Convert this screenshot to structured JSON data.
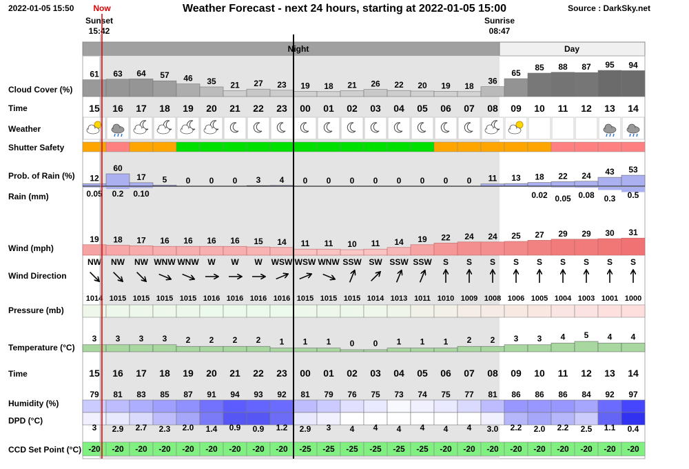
{
  "header": {
    "timestamp": "2022-01-05 15:50",
    "now": "Now",
    "title": "Weather Forecast - next 24 hours, starting at 2022-01-05 15:00",
    "source": "Source : DarkSky.net",
    "sunset_label": "Sunset",
    "sunset_time": "15:42",
    "sunrise_label": "Sunrise",
    "sunrise_time": "08:47",
    "night": "Night",
    "day": "Day"
  },
  "labels": {
    "cloud_cover": "Cloud Cover (%)",
    "time": "Time",
    "weather": "Weather",
    "shutter": "Shutter Safety",
    "rain_prob": "Prob. of Rain (%)",
    "rain_mm": "Rain (mm)",
    "wind": "Wind (mph)",
    "wind_dir": "Wind Direction",
    "pressure": "Pressure (mb)",
    "temperature": "Temperature (°C)",
    "humidity": "Humidity (%)",
    "dpd": "DPD (°C)",
    "ccd": "CCD Set Point (°C)"
  },
  "hours": [
    "15",
    "16",
    "17",
    "18",
    "19",
    "20",
    "21",
    "22",
    "23",
    "00",
    "01",
    "02",
    "03",
    "04",
    "05",
    "06",
    "07",
    "08",
    "09",
    "10",
    "11",
    "12",
    "13",
    "14"
  ],
  "cloud_cover": [
    61,
    63,
    64,
    57,
    46,
    35,
    21,
    27,
    23,
    19,
    18,
    21,
    26,
    22,
    20,
    19,
    18,
    36,
    65,
    85,
    88,
    87,
    95,
    94
  ],
  "shutter_colors": [
    "#ffa500",
    "#ff8080",
    "#ffa500",
    "#ffa500",
    "#00e000",
    "#00e000",
    "#00e000",
    "#00e000",
    "#00e000",
    "#00e000",
    "#00e000",
    "#00e000",
    "#00e000",
    "#00e000",
    "#00e000",
    "#ffa500",
    "#ffa500",
    "#ffa500",
    "#ffa500",
    "#ffa500",
    "#ff8080",
    "#ff8080",
    "#ff8080",
    "#ff8080"
  ],
  "rain_prob": [
    12,
    60,
    17,
    5,
    0,
    0,
    0,
    3,
    4,
    0,
    0,
    0,
    0,
    0,
    0,
    0,
    0,
    11,
    13,
    18,
    22,
    24,
    43,
    53
  ],
  "rain_mm": [
    "0.05",
    "0.2",
    "0.10",
    null,
    null,
    null,
    null,
    null,
    null,
    null,
    null,
    null,
    null,
    null,
    null,
    null,
    null,
    null,
    null,
    "0.02",
    "0.05",
    "0.08",
    "0.3",
    "0.5"
  ],
  "wind": [
    19,
    18,
    17,
    16,
    16,
    16,
    16,
    15,
    14,
    11,
    11,
    10,
    11,
    14,
    19,
    22,
    24,
    24,
    25,
    27,
    29,
    29,
    30,
    31
  ],
  "wind_dir": [
    "NW",
    "NW",
    "NW",
    "WNW",
    "WNW",
    "W",
    "W",
    "W",
    "WSW",
    "WSW",
    "WNW",
    "SSW",
    "SW",
    "SSW",
    "SSW",
    "S",
    "S",
    "S",
    "S",
    "S",
    "S",
    "S",
    "S",
    "S"
  ],
  "pressure": [
    1014,
    1015,
    1015,
    1015,
    1015,
    1016,
    1016,
    1016,
    1016,
    1015,
    1015,
    1015,
    1014,
    1013,
    1011,
    1010,
    1009,
    1008,
    1006,
    1005,
    1004,
    1003,
    1001,
    1000
  ],
  "temperature": [
    3,
    3,
    3,
    3,
    2,
    2,
    2,
    2,
    1,
    1,
    1,
    0,
    0,
    1,
    1,
    1,
    2,
    2,
    3,
    3,
    4,
    5,
    4,
    4
  ],
  "humidity": [
    79,
    81,
    83,
    85,
    87,
    91,
    94,
    93,
    92,
    81,
    79,
    76,
    75,
    73,
    74,
    75,
    77,
    81,
    86,
    86,
    86,
    84,
    92,
    97
  ],
  "dpd": [
    "3",
    "2.9",
    "2.7",
    "2.3",
    "2.0",
    "1.4",
    "0.9",
    "0.9",
    "1.2",
    "2.9",
    "3",
    "4",
    "4",
    "4",
    "4",
    "4",
    "4",
    "3.0",
    "2.2",
    "2.0",
    "2.2",
    "2.5",
    "1.1",
    "0.4"
  ],
  "ccd": [
    -20,
    -20,
    -20,
    -20,
    -20,
    -20,
    -20,
    -20,
    -20,
    -25,
    -25,
    -25,
    -25,
    -25,
    -25,
    -20,
    -20,
    -20,
    -20,
    -20,
    -20,
    -20,
    -20,
    -20
  ]
}
